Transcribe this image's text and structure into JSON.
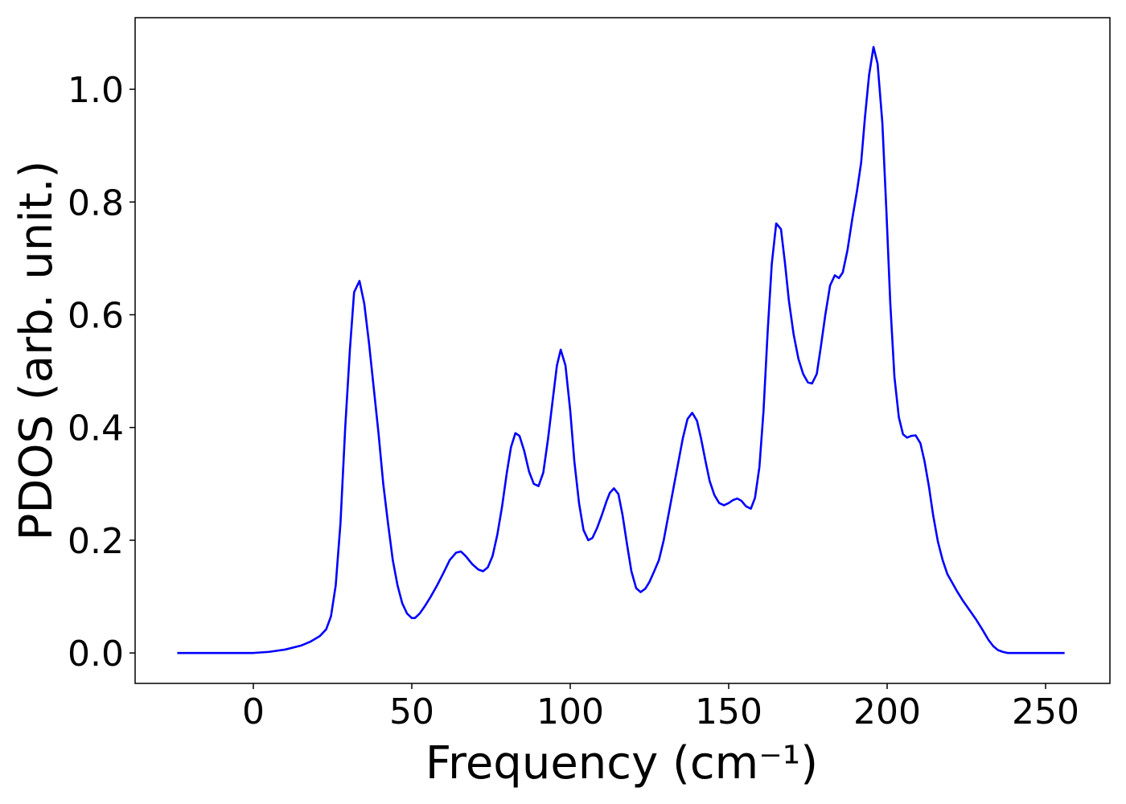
{
  "chart_data": {
    "type": "line",
    "xlabel": "Frequency (cm⁻¹)",
    "ylabel": "PDOS (arb. unit.)",
    "xlim": [
      -37.3,
      270.3
    ],
    "ylim": [
      -0.054,
      1.127
    ],
    "xticks": [
      0,
      50,
      100,
      150,
      200,
      250
    ],
    "yticks": [
      {
        "value": 0,
        "label": "0.0"
      },
      {
        "value": 0.2,
        "label": "0.2"
      },
      {
        "value": 0.4,
        "label": "0.4"
      },
      {
        "value": 0.6,
        "label": "0.6"
      },
      {
        "value": 0.8,
        "label": "0.8"
      },
      {
        "value": 1.0,
        "label": "1.0"
      }
    ],
    "grid": false,
    "series": [
      {
        "color": "#0000ff",
        "x": [
          -24,
          -10,
          0,
          5,
          10,
          15,
          18,
          21,
          23,
          24.5,
          26,
          27.5,
          29,
          30.5,
          31.8,
          33.5,
          35,
          36.5,
          38,
          39.5,
          41,
          42.5,
          44,
          45.5,
          47,
          48.5,
          50,
          51,
          52.5,
          54,
          56,
          58,
          60,
          62,
          64,
          65.5,
          67,
          69,
          71,
          72.5,
          74,
          75.5,
          77,
          78.5,
          80,
          81.3,
          82.7,
          84,
          85.5,
          87,
          88.5,
          90,
          91.5,
          93,
          94.5,
          95.8,
          97,
          98.5,
          100,
          101.3,
          102.8,
          104.2,
          105.7,
          107,
          108.5,
          110,
          111.5,
          112.5,
          113.8,
          115.2,
          116.5,
          118,
          119.3,
          120.8,
          122.2,
          123.7,
          125,
          126.5,
          128,
          129.5,
          131,
          132.5,
          134,
          135.5,
          137,
          138.5,
          140,
          141.3,
          142.7,
          144,
          145.5,
          147,
          148.5,
          150,
          151.3,
          152.7,
          154,
          155.5,
          157,
          158.3,
          159.7,
          161,
          162.3,
          163.6,
          165,
          166.5,
          167.8,
          169,
          170.5,
          172,
          173.5,
          175,
          176.3,
          177.8,
          179,
          180.5,
          182,
          183.5,
          184.8,
          186,
          187.5,
          189,
          190.5,
          191.8,
          193,
          194.3,
          195.7,
          197,
          198.5,
          199.8,
          201,
          202.3,
          203.7,
          205,
          206.3,
          207.6,
          209,
          210.5,
          211.8,
          213.2,
          214.5,
          216,
          217.5,
          219,
          220.5,
          222,
          224,
          226,
          228,
          230,
          232,
          233.5,
          235,
          236.5,
          238,
          245,
          256
        ],
        "values": [
          0,
          0,
          0,
          0.002,
          0.006,
          0.013,
          0.02,
          0.03,
          0.042,
          0.065,
          0.12,
          0.23,
          0.4,
          0.54,
          0.64,
          0.66,
          0.62,
          0.55,
          0.47,
          0.39,
          0.3,
          0.23,
          0.165,
          0.12,
          0.088,
          0.07,
          0.062,
          0.062,
          0.07,
          0.082,
          0.1,
          0.12,
          0.142,
          0.165,
          0.178,
          0.18,
          0.172,
          0.158,
          0.148,
          0.145,
          0.152,
          0.172,
          0.21,
          0.26,
          0.32,
          0.365,
          0.39,
          0.385,
          0.358,
          0.322,
          0.3,
          0.296,
          0.32,
          0.38,
          0.45,
          0.51,
          0.538,
          0.51,
          0.43,
          0.34,
          0.265,
          0.218,
          0.2,
          0.204,
          0.222,
          0.245,
          0.27,
          0.284,
          0.292,
          0.282,
          0.245,
          0.19,
          0.145,
          0.115,
          0.108,
          0.114,
          0.126,
          0.145,
          0.165,
          0.2,
          0.245,
          0.29,
          0.335,
          0.38,
          0.415,
          0.426,
          0.412,
          0.38,
          0.34,
          0.305,
          0.28,
          0.266,
          0.262,
          0.266,
          0.271,
          0.274,
          0.27,
          0.26,
          0.256,
          0.275,
          0.33,
          0.43,
          0.57,
          0.69,
          0.762,
          0.752,
          0.69,
          0.625,
          0.565,
          0.522,
          0.495,
          0.48,
          0.478,
          0.495,
          0.54,
          0.6,
          0.652,
          0.67,
          0.665,
          0.675,
          0.715,
          0.77,
          0.82,
          0.87,
          0.95,
          1.025,
          1.075,
          1.045,
          0.94,
          0.78,
          0.62,
          0.49,
          0.418,
          0.388,
          0.382,
          0.385,
          0.386,
          0.372,
          0.34,
          0.295,
          0.245,
          0.198,
          0.165,
          0.14,
          0.125,
          0.11,
          0.092,
          0.076,
          0.06,
          0.042,
          0.023,
          0.012,
          0.005,
          0.002,
          0,
          0,
          0
        ]
      }
    ]
  }
}
